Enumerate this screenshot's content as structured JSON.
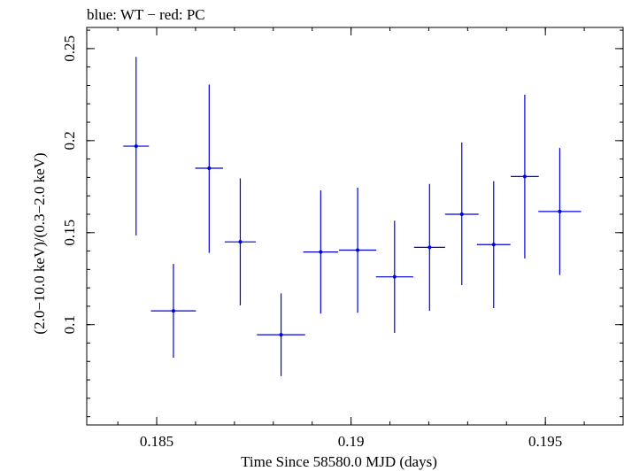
{
  "chart_data": {
    "type": "scatter",
    "title": "blue: WT − red: PC",
    "xlabel": "Time Since 58580.0 MJD (days)",
    "ylabel": "(2.0−10.0 keV)/(0.3−2.0 keV)",
    "xlim": [
      0.1832,
      0.197
    ],
    "ylim": [
      0.0455,
      0.2615
    ],
    "x_ticks": [
      0.185,
      0.19,
      0.195
    ],
    "x_tick_labels": [
      "0.185",
      "0.19",
      "0.195"
    ],
    "y_ticks": [
      0.1,
      0.15,
      0.2,
      0.25
    ],
    "y_tick_labels": [
      "0.1",
      "0.15",
      "0.2",
      "0.25"
    ],
    "grid": false,
    "series": [
      {
        "color": "#0000dd",
        "points": [
          {
            "x": 0.18447,
            "xerr": 0.00033,
            "y": 0.197,
            "yerr_low": 0.0485,
            "yerr_high": 0.0485
          },
          {
            "x": 0.18543,
            "xerr": 0.00058,
            "y": 0.1075,
            "yerr_low": 0.0255,
            "yerr_high": 0.0255
          },
          {
            "x": 0.18635,
            "xerr": 0.00036,
            "y": 0.185,
            "yerr_low": 0.046,
            "yerr_high": 0.0455
          },
          {
            "x": 0.18715,
            "xerr": 0.0004,
            "y": 0.145,
            "yerr_low": 0.0345,
            "yerr_high": 0.0345
          },
          {
            "x": 0.1882,
            "xerr": 0.00062,
            "y": 0.0945,
            "yerr_low": 0.0225,
            "yerr_high": 0.0225
          },
          {
            "x": 0.18922,
            "xerr": 0.00045,
            "y": 0.1395,
            "yerr_low": 0.0335,
            "yerr_high": 0.0335
          },
          {
            "x": 0.19017,
            "xerr": 0.00048,
            "y": 0.1405,
            "yerr_low": 0.034,
            "yerr_high": 0.034
          },
          {
            "x": 0.19112,
            "xerr": 0.00048,
            "y": 0.126,
            "yerr_low": 0.0305,
            "yerr_high": 0.0305
          },
          {
            "x": 0.19202,
            "xerr": 0.0004,
            "y": 0.142,
            "yerr_low": 0.0345,
            "yerr_high": 0.0345
          },
          {
            "x": 0.19285,
            "xerr": 0.00043,
            "y": 0.16,
            "yerr_low": 0.0385,
            "yerr_high": 0.039
          },
          {
            "x": 0.19367,
            "xerr": 0.00043,
            "y": 0.1435,
            "yerr_low": 0.0345,
            "yerr_high": 0.0345
          },
          {
            "x": 0.19447,
            "xerr": 0.00036,
            "y": 0.1805,
            "yerr_low": 0.0445,
            "yerr_high": 0.0445
          },
          {
            "x": 0.19537,
            "xerr": 0.00055,
            "y": 0.1615,
            "yerr_low": 0.0345,
            "yerr_high": 0.0345
          }
        ]
      }
    ]
  }
}
